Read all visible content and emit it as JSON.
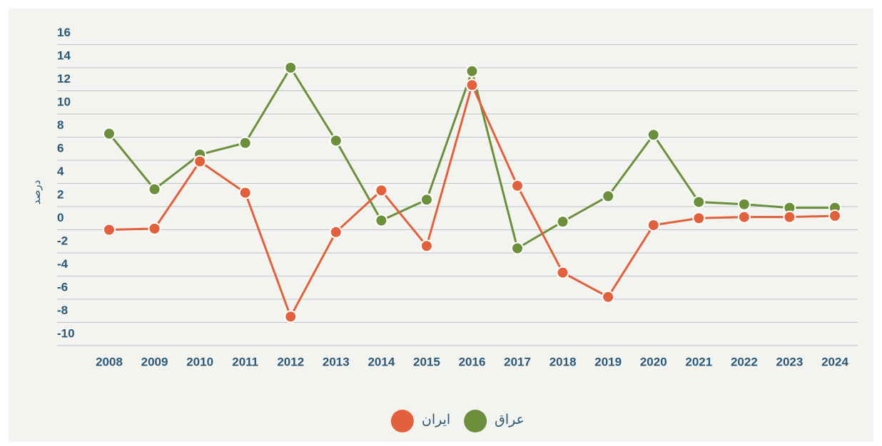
{
  "chart_data": {
    "type": "line",
    "y_label": "درصد",
    "categories": [
      "2008",
      "2009",
      "2010",
      "2011",
      "2012",
      "2013",
      "2014",
      "2015",
      "2016",
      "2017",
      "2018",
      "2019",
      "2020",
      "2021",
      "2022",
      "2023",
      "2024"
    ],
    "series": [
      {
        "name": "عراق",
        "color": "#6b8f3b",
        "values": [
          8.3,
          3.5,
          6.5,
          7.5,
          14,
          7.7,
          0.8,
          2.6,
          13.7,
          -1.6,
          0.7,
          2.9,
          8.2,
          2.4,
          2.2,
          1.9,
          1.9
        ]
      },
      {
        "name": "ایران",
        "color": "#e2603b",
        "values": [
          0,
          0.1,
          5.9,
          3.2,
          -7.5,
          -0.2,
          3.4,
          -1.4,
          12.5,
          3.8,
          -3.7,
          -5.8,
          0.4,
          1.0,
          1.1,
          1.1,
          1.2
        ]
      }
    ],
    "ylim": [
      -10,
      16
    ],
    "yticks": [
      -10,
      -8,
      -6,
      -4,
      -2,
      0,
      2,
      4,
      6,
      8,
      10,
      12,
      14,
      16
    ],
    "grid": true
  }
}
